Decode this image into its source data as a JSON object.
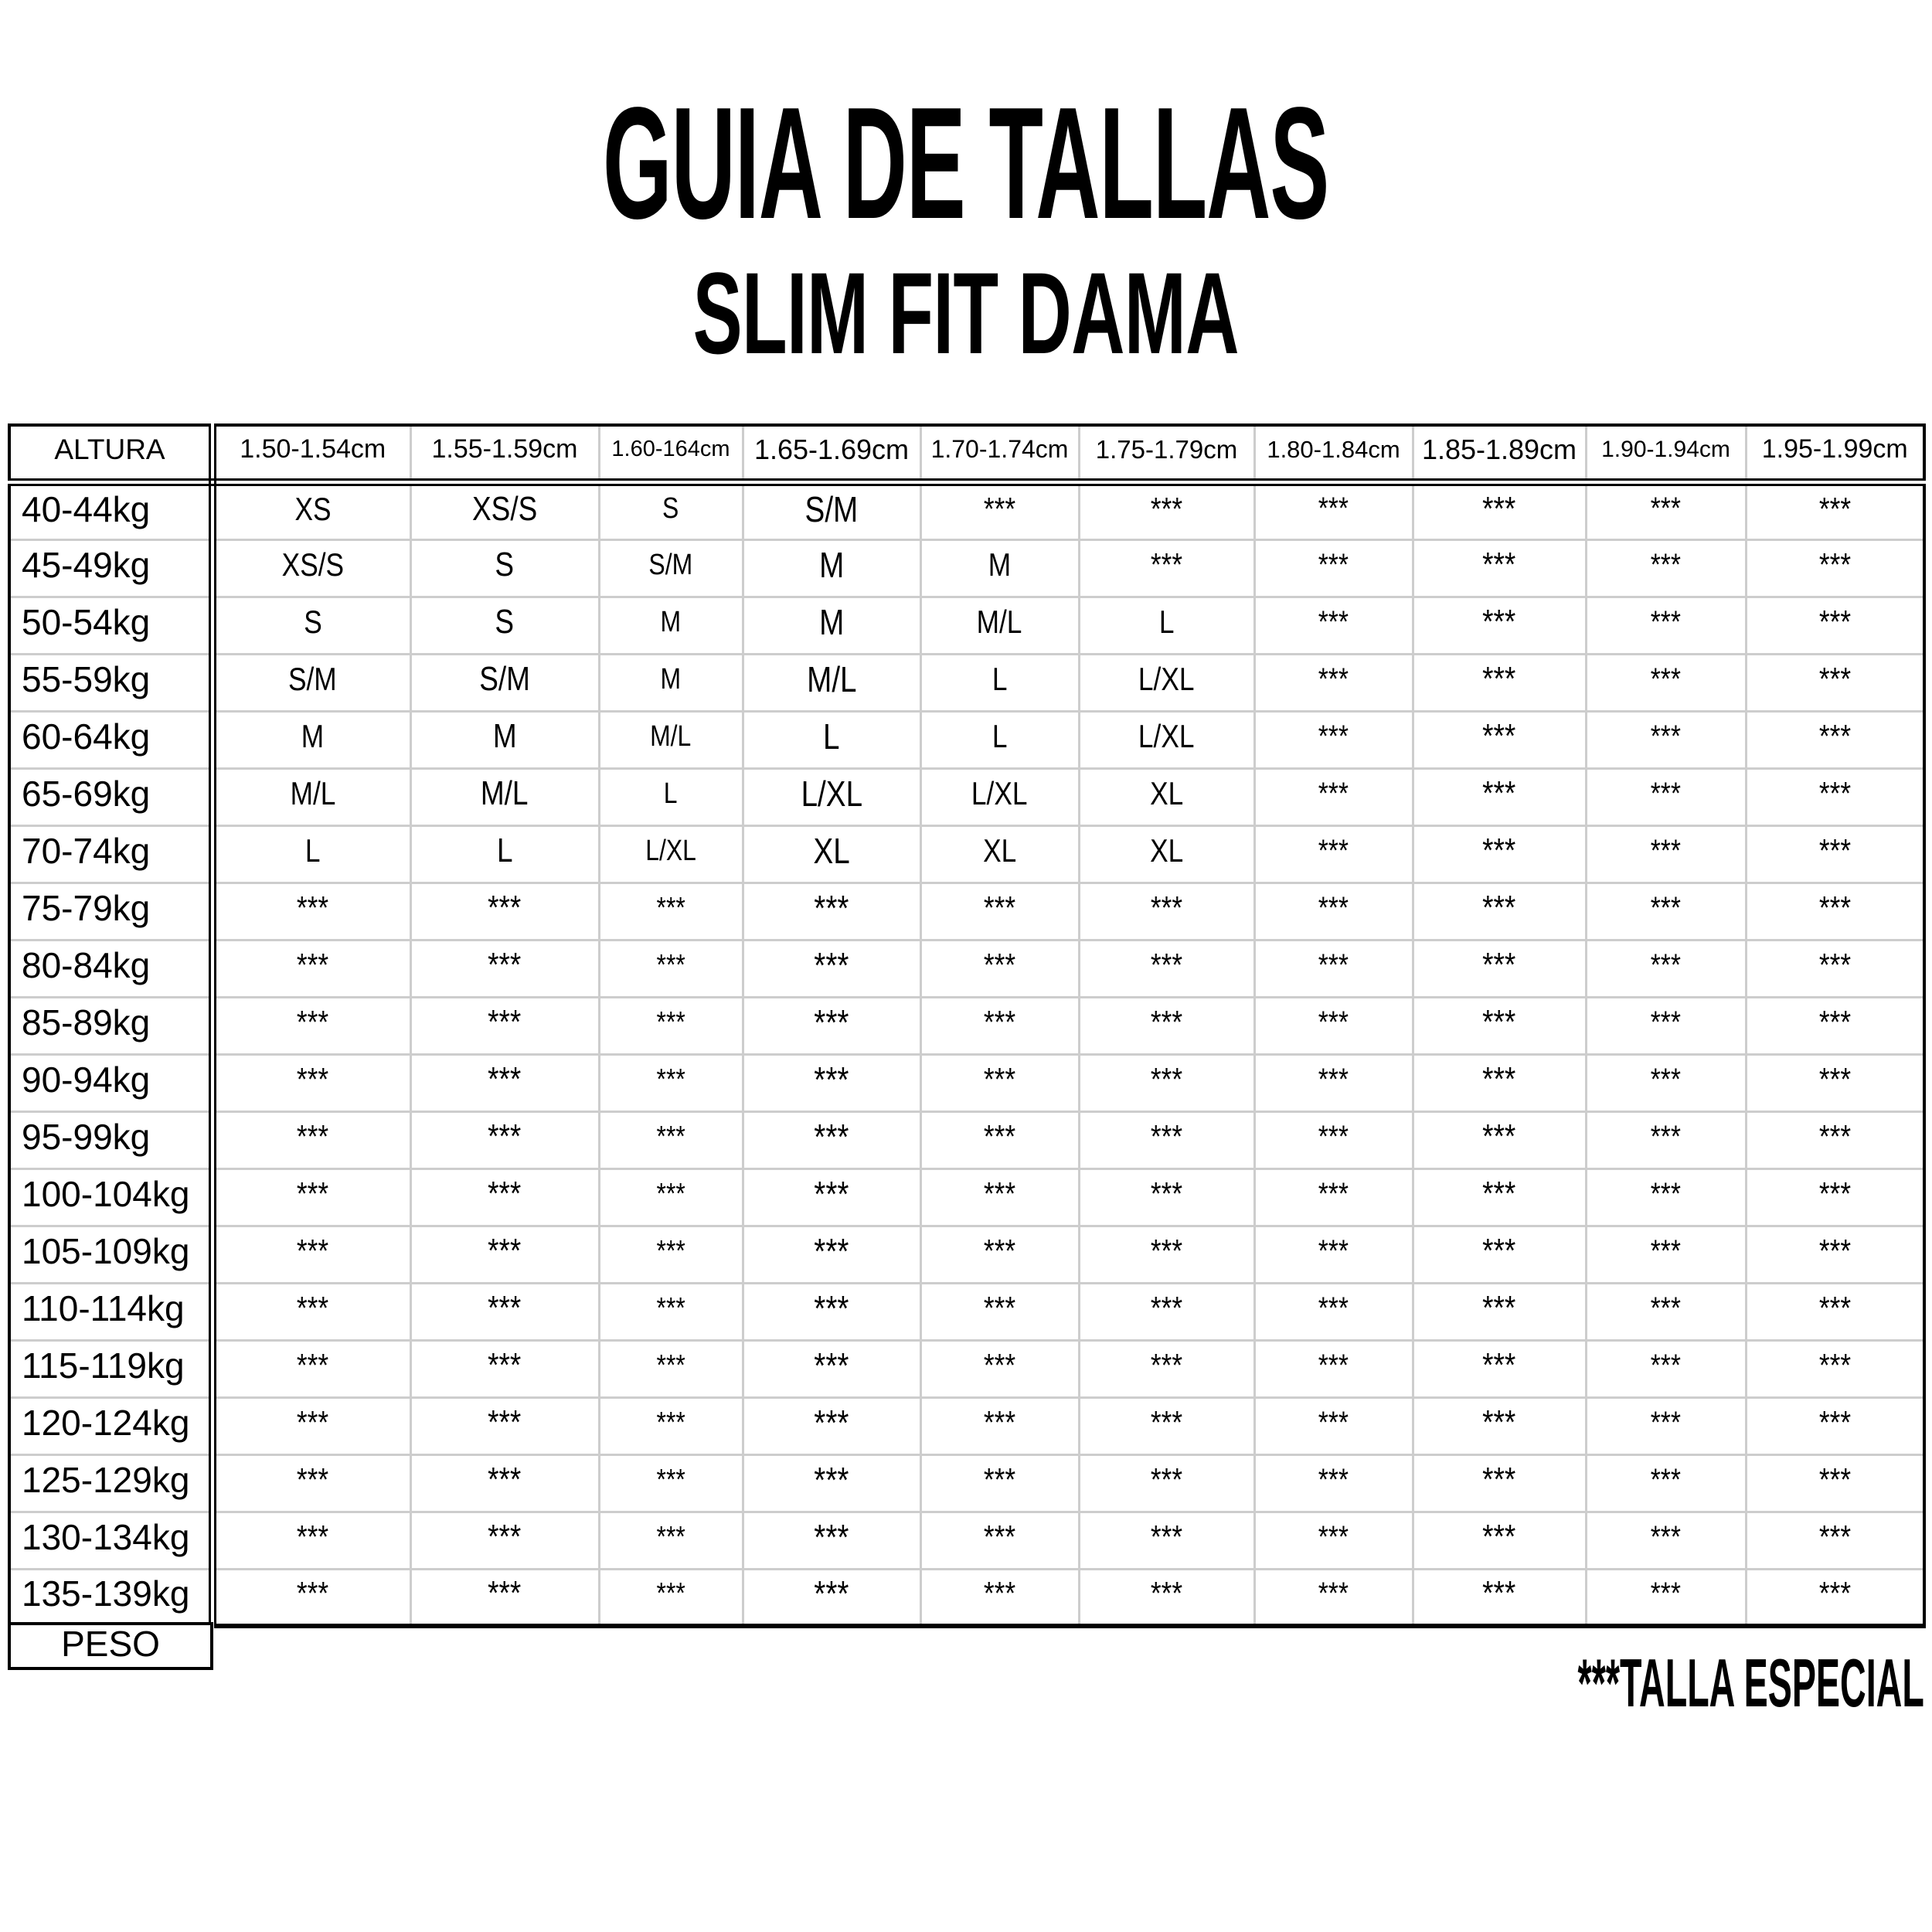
{
  "title": "GUIA DE TALLAS",
  "subtitle": "SLIM FIT DAMA",
  "footnote": "***TALLA ESPECIAL",
  "special_size_marker": "***",
  "colors": {
    "text": "#000000",
    "border": "#000000",
    "grid_line": "#cdcdcd",
    "background": "#ffffff"
  },
  "table": {
    "corner_label": "ALTURA",
    "bottom_label": "PESO",
    "height_columns": [
      "1.50-1.54cm",
      "1.55-1.59cm",
      "1.60-164cm",
      "1.65-1.69cm",
      "1.70-1.74cm",
      "1.75-1.79cm",
      "1.80-1.84cm",
      "1.85-1.89cm",
      "1.90-1.94cm",
      "1.95-1.99cm"
    ],
    "rows": [
      {
        "weight": "40-44kg",
        "sizes": [
          "XS",
          "XS/S",
          "S",
          "S/M",
          "***",
          "***",
          "***",
          "***",
          "***",
          "***"
        ]
      },
      {
        "weight": "45-49kg",
        "sizes": [
          "XS/S",
          "S",
          "S/M",
          "M",
          "M",
          "***",
          "***",
          "***",
          "***",
          "***"
        ]
      },
      {
        "weight": "50-54kg",
        "sizes": [
          "S",
          "S",
          "M",
          "M",
          "M/L",
          "L",
          "***",
          "***",
          "***",
          "***"
        ]
      },
      {
        "weight": "55-59kg",
        "sizes": [
          "S/M",
          "S/M",
          "M",
          "M/L",
          "L",
          "L/XL",
          "***",
          "***",
          "***",
          "***"
        ]
      },
      {
        "weight": "60-64kg",
        "sizes": [
          "M",
          "M",
          "M/L",
          "L",
          "L",
          "L/XL",
          "***",
          "***",
          "***",
          "***"
        ]
      },
      {
        "weight": "65-69kg",
        "sizes": [
          "M/L",
          "M/L",
          "L",
          "L/XL",
          "L/XL",
          "XL",
          "***",
          "***",
          "***",
          "***"
        ]
      },
      {
        "weight": "70-74kg",
        "sizes": [
          "L",
          "L",
          "L/XL",
          "XL",
          "XL",
          "XL",
          "***",
          "***",
          "***",
          "***"
        ]
      },
      {
        "weight": "75-79kg",
        "sizes": [
          "***",
          "***",
          "***",
          "***",
          "***",
          "***",
          "***",
          "***",
          "***",
          "***"
        ]
      },
      {
        "weight": "80-84kg",
        "sizes": [
          "***",
          "***",
          "***",
          "***",
          "***",
          "***",
          "***",
          "***",
          "***",
          "***"
        ]
      },
      {
        "weight": "85-89kg",
        "sizes": [
          "***",
          "***",
          "***",
          "***",
          "***",
          "***",
          "***",
          "***",
          "***",
          "***"
        ]
      },
      {
        "weight": "90-94kg",
        "sizes": [
          "***",
          "***",
          "***",
          "***",
          "***",
          "***",
          "***",
          "***",
          "***",
          "***"
        ]
      },
      {
        "weight": "95-99kg",
        "sizes": [
          "***",
          "***",
          "***",
          "***",
          "***",
          "***",
          "***",
          "***",
          "***",
          "***"
        ]
      },
      {
        "weight": "100-104kg",
        "sizes": [
          "***",
          "***",
          "***",
          "***",
          "***",
          "***",
          "***",
          "***",
          "***",
          "***"
        ]
      },
      {
        "weight": "105-109kg",
        "sizes": [
          "***",
          "***",
          "***",
          "***",
          "***",
          "***",
          "***",
          "***",
          "***",
          "***"
        ]
      },
      {
        "weight": "110-114kg",
        "sizes": [
          "***",
          "***",
          "***",
          "***",
          "***",
          "***",
          "***",
          "***",
          "***",
          "***"
        ]
      },
      {
        "weight": "115-119kg",
        "sizes": [
          "***",
          "***",
          "***",
          "***",
          "***",
          "***",
          "***",
          "***",
          "***",
          "***"
        ]
      },
      {
        "weight": "120-124kg",
        "sizes": [
          "***",
          "***",
          "***",
          "***",
          "***",
          "***",
          "***",
          "***",
          "***",
          "***"
        ]
      },
      {
        "weight": "125-129kg",
        "sizes": [
          "***",
          "***",
          "***",
          "***",
          "***",
          "***",
          "***",
          "***",
          "***",
          "***"
        ]
      },
      {
        "weight": "130-134kg",
        "sizes": [
          "***",
          "***",
          "***",
          "***",
          "***",
          "***",
          "***",
          "***",
          "***",
          "***"
        ]
      },
      {
        "weight": "135-139kg",
        "sizes": [
          "***",
          "***",
          "***",
          "***",
          "***",
          "***",
          "***",
          "***",
          "***",
          "***"
        ]
      }
    ]
  }
}
